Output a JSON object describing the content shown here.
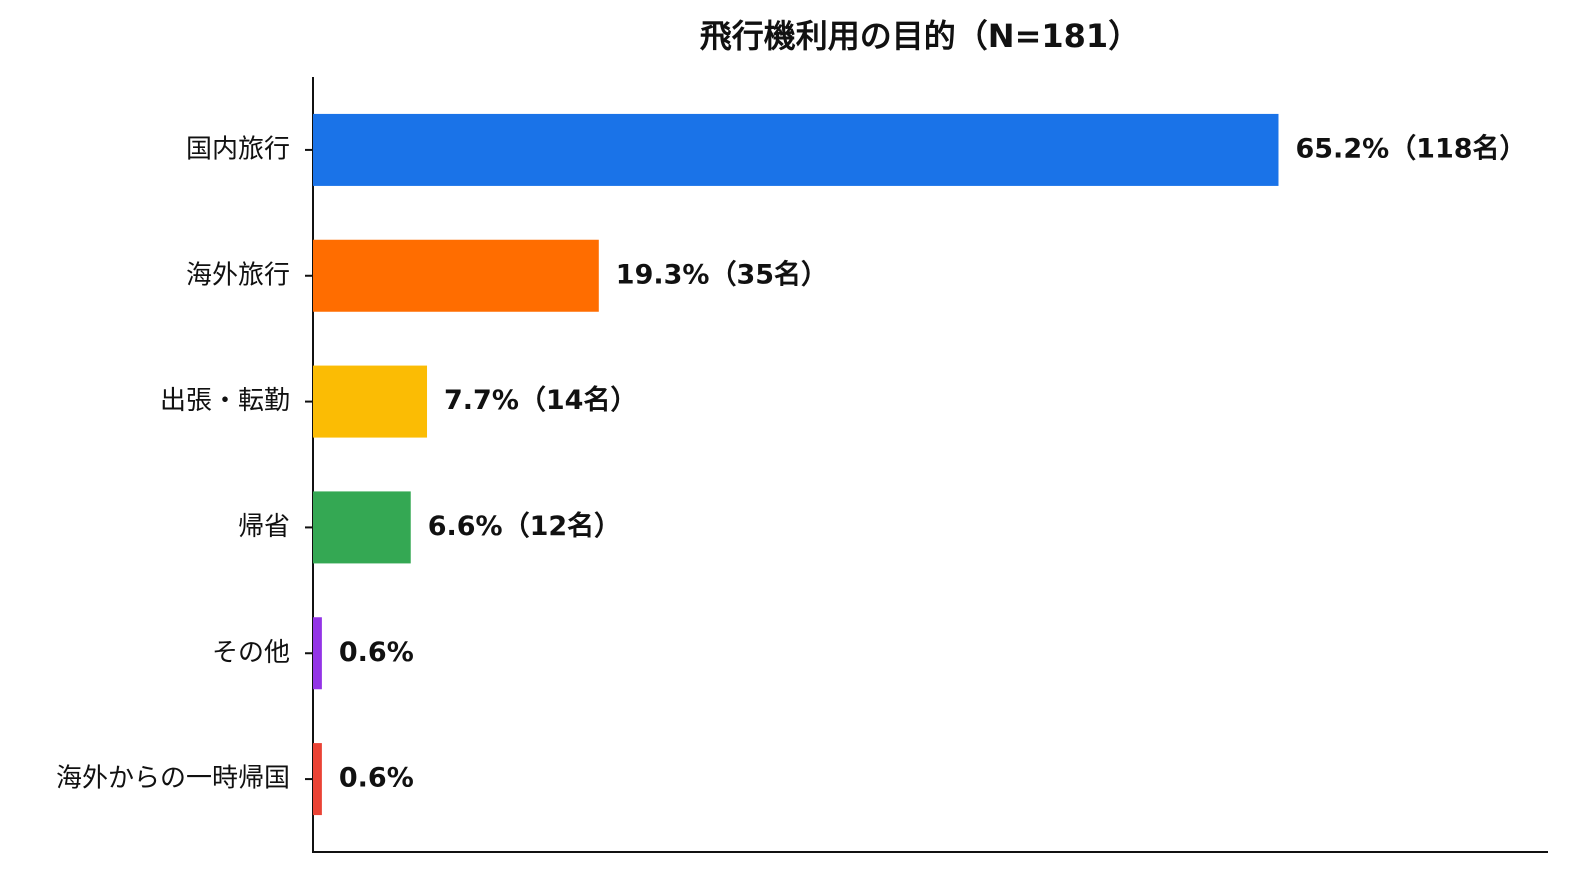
{
  "chart_data": {
    "type": "bar",
    "orientation": "horizontal",
    "title": "飛行機利用の目的（N=181）",
    "categories": [
      "国内旅行",
      "海外旅行",
      "出張・転勤",
      "帰省",
      "その他",
      "海外からの一時帰国"
    ],
    "values": [
      65.2,
      19.3,
      7.7,
      6.6,
      0.6,
      0.6
    ],
    "value_labels": [
      "65.2%（118名）",
      "19.3%（35名）",
      "7.7%（14名）",
      "6.6%（12名）",
      "0.6%",
      "0.6%"
    ],
    "colors": [
      "#1a73e8",
      "#ff6d00",
      "#fbbc04",
      "#34a853",
      "#9334e6",
      "#ea4335"
    ],
    "xlim": [
      0,
      83.4
    ]
  }
}
